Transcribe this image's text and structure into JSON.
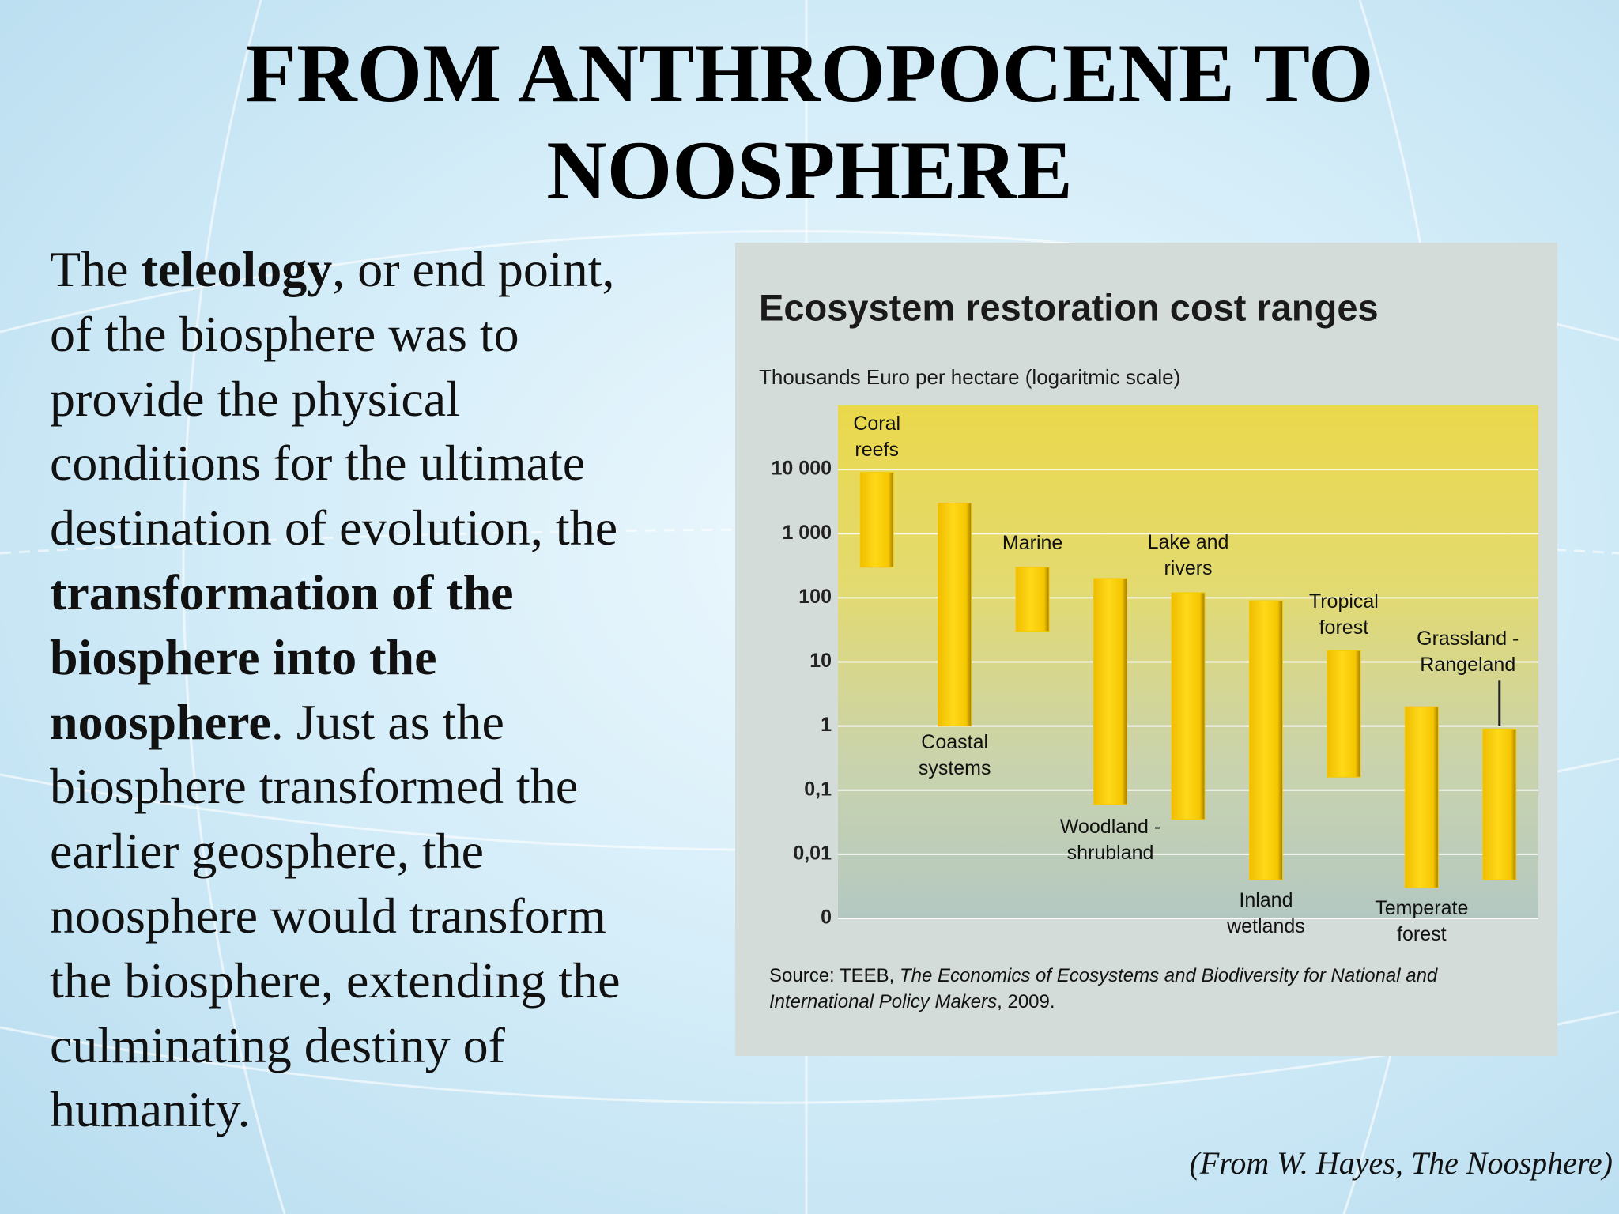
{
  "slide": {
    "title": [
      "FROM ANTHROPOCENE TO",
      "NOOSPHERE"
    ],
    "body": [
      [
        {
          "text": "The "
        },
        {
          "text": "teleology",
          "bold": true
        },
        {
          "text": ", or end point,"
        }
      ],
      [
        {
          "text": "of the biosphere was to"
        }
      ],
      [
        {
          "text": "provide the physical"
        }
      ],
      [
        {
          "text": "conditions for the ultimate"
        }
      ],
      [
        {
          "text": "destination of evolution, the"
        }
      ],
      [
        {
          "text": "transformation of the",
          "bold": true
        }
      ],
      [
        {
          "text": "biosphere into the",
          "bold": true
        }
      ],
      [
        {
          "text": "noosphere",
          "bold": true
        },
        {
          "text": ". Just as the"
        }
      ],
      [
        {
          "text": "biosphere transformed the"
        }
      ],
      [
        {
          "text": "earlier geosphere, the"
        }
      ],
      [
        {
          "text": "noosphere would transform"
        }
      ],
      [
        {
          "text": "the biosphere, extending the"
        }
      ],
      [
        {
          "text": "culminating destiny of"
        }
      ],
      [
        {
          "text": "humanity."
        }
      ]
    ],
    "citation": "(From W. Hayes, The Noosphere)"
  },
  "chart_data": {
    "type": "rangebar",
    "title": "Ecosystem restoration cost ranges",
    "subtitle": "Thousands Euro per hectare (logaritmic scale)",
    "categories": [
      "Coral reefs",
      "Coastal systems",
      "Marine",
      "Woodland - shrubland",
      "Lake and rivers",
      "Inland wetlands",
      "Tropical forest",
      "Temperate forest",
      "Grassland - Rangeland"
    ],
    "low": [
      300,
      1,
      30,
      0.06,
      0.035,
      0.004,
      0.16,
      0.003,
      0.004
    ],
    "high": [
      9000,
      3000,
      300,
      200,
      120,
      90,
      15,
      2,
      0.9
    ],
    "color": "#f7c800",
    "yscale": "log",
    "ylim": [
      0.001,
      100000
    ],
    "yticks": [
      {
        "value": 10000,
        "label": "10 000"
      },
      {
        "value": 1000,
        "label": "1 000"
      },
      100,
      10,
      1,
      {
        "value": 0.1,
        "label": "0,1"
      },
      {
        "value": 0.01,
        "label": "0,01"
      },
      {
        "value": 0.001,
        "label": "0"
      }
    ],
    "grid": true,
    "source": [
      {
        "text": "Source: TEEB, "
      },
      {
        "text": "The Economics of Ecosystems and Biodiversity for National and International Policy Makers",
        "italic": true
      },
      {
        "text": ", 2009."
      }
    ]
  }
}
